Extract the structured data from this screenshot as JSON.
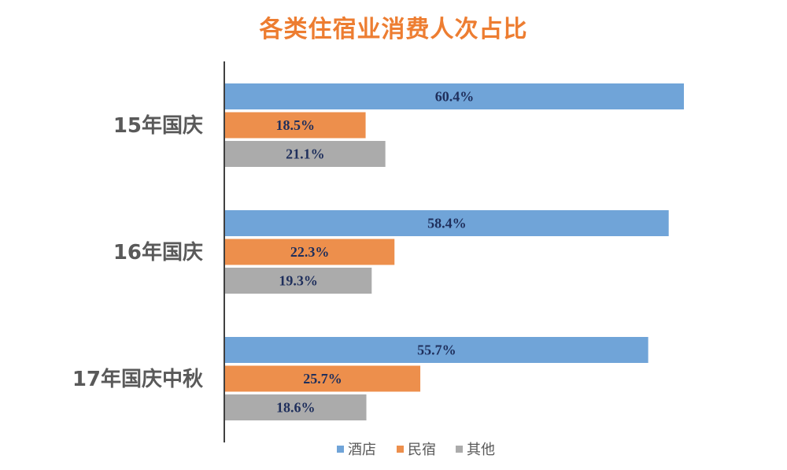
{
  "chart_data": {
    "type": "bar",
    "orientation": "horizontal",
    "title": "各类住宿业消费人次占比",
    "categories": [
      "15年国庆",
      "16年国庆",
      "17年国庆中秋"
    ],
    "series": [
      {
        "name": "酒店",
        "color": "#70A4D8",
        "values": [
          60.4,
          58.4,
          55.7
        ],
        "labels": [
          "60.4%",
          "58.4%",
          "55.7%"
        ]
      },
      {
        "name": "民宿",
        "color": "#ED8F4C",
        "values": [
          18.5,
          22.3,
          25.7
        ],
        "labels": [
          "18.5%",
          "22.3%",
          "25.7%"
        ]
      },
      {
        "name": "其他",
        "color": "#ABABAB",
        "values": [
          21.1,
          19.3,
          18.6
        ],
        "labels": [
          "21.1%",
          "19.3%",
          "18.6%"
        ]
      }
    ],
    "xlim": [
      0,
      60.4
    ],
    "grid": false,
    "legend_position": "bottom"
  }
}
